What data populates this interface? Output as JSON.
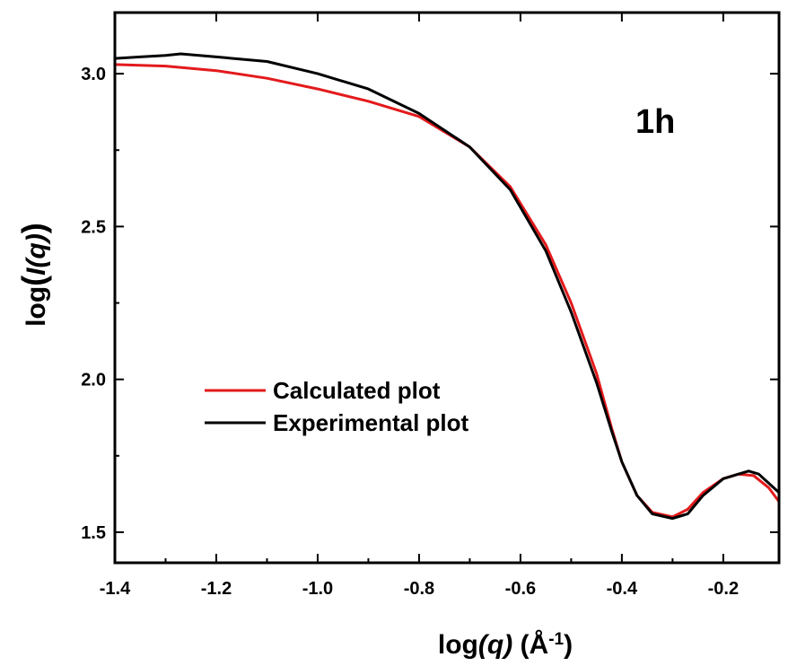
{
  "chart_data": {
    "type": "line",
    "xlabel": {
      "prefix": "log",
      "var": "(q)",
      "unit_open": " (Å",
      "unit_exp": "-1",
      "unit_close": ")"
    },
    "ylabel": {
      "prefix": "log",
      "open": "(",
      "var": "I(q)",
      "close": ")"
    },
    "xlim": [
      -1.4,
      -0.09
    ],
    "ylim": [
      1.4,
      3.2
    ],
    "xticks": [
      -1.4,
      -1.2,
      -1.0,
      -0.8,
      -0.6,
      -0.4,
      -0.2
    ],
    "xtick_labels": [
      "-1.4",
      "-1.2",
      "-1.0",
      "-0.8",
      "-0.6",
      "-0.4",
      "-0.2"
    ],
    "yticks": [
      1.5,
      2.0,
      2.5,
      3.0
    ],
    "ytick_labels": [
      "1.5",
      "2.0",
      "2.5",
      "3.0"
    ],
    "annotation": "1h",
    "legend_position": "center-left",
    "series": [
      {
        "name": "Calculated plot",
        "color": "#e31a1c",
        "points": [
          [
            -1.4,
            3.03
          ],
          [
            -1.3,
            3.025
          ],
          [
            -1.2,
            3.01
          ],
          [
            -1.1,
            2.985
          ],
          [
            -1.0,
            2.95
          ],
          [
            -0.9,
            2.91
          ],
          [
            -0.8,
            2.86
          ],
          [
            -0.7,
            2.76
          ],
          [
            -0.62,
            2.63
          ],
          [
            -0.55,
            2.44
          ],
          [
            -0.5,
            2.25
          ],
          [
            -0.45,
            2.02
          ],
          [
            -0.42,
            1.84
          ],
          [
            -0.4,
            1.73
          ],
          [
            -0.37,
            1.62
          ],
          [
            -0.34,
            1.565
          ],
          [
            -0.3,
            1.55
          ],
          [
            -0.27,
            1.575
          ],
          [
            -0.24,
            1.63
          ],
          [
            -0.2,
            1.675
          ],
          [
            -0.17,
            1.69
          ],
          [
            -0.14,
            1.685
          ],
          [
            -0.11,
            1.645
          ],
          [
            -0.09,
            1.6
          ]
        ]
      },
      {
        "name": "Experimental plot",
        "color": "#000000",
        "points": [
          [
            -1.4,
            3.05
          ],
          [
            -1.35,
            3.055
          ],
          [
            -1.3,
            3.06
          ],
          [
            -1.27,
            3.065
          ],
          [
            -1.2,
            3.055
          ],
          [
            -1.1,
            3.04
          ],
          [
            -1.0,
            3.0
          ],
          [
            -0.9,
            2.95
          ],
          [
            -0.8,
            2.87
          ],
          [
            -0.7,
            2.76
          ],
          [
            -0.62,
            2.62
          ],
          [
            -0.55,
            2.42
          ],
          [
            -0.5,
            2.22
          ],
          [
            -0.45,
            1.99
          ],
          [
            -0.42,
            1.83
          ],
          [
            -0.4,
            1.73
          ],
          [
            -0.37,
            1.62
          ],
          [
            -0.34,
            1.56
          ],
          [
            -0.3,
            1.545
          ],
          [
            -0.27,
            1.56
          ],
          [
            -0.24,
            1.62
          ],
          [
            -0.2,
            1.675
          ],
          [
            -0.17,
            1.69
          ],
          [
            -0.15,
            1.7
          ],
          [
            -0.13,
            1.69
          ],
          [
            -0.11,
            1.66
          ],
          [
            -0.09,
            1.63
          ]
        ]
      }
    ]
  }
}
